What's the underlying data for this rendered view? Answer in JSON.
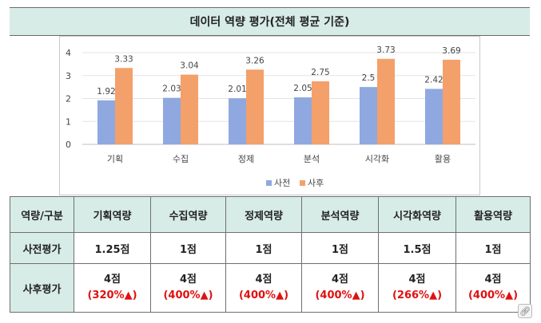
{
  "chart_data": {
    "type": "bar",
    "title": "데이터 역량 평가(전체 평균 기준)",
    "categories": [
      "기획",
      "수집",
      "정제",
      "분석",
      "시각화",
      "활용"
    ],
    "series": [
      {
        "name": "사전",
        "color": "#8fa8e0",
        "values": [
          1.92,
          2.03,
          2.01,
          2.05,
          2.5,
          2.42
        ]
      },
      {
        "name": "사후",
        "color": "#f4a06a",
        "values": [
          3.33,
          3.04,
          3.26,
          2.75,
          3.73,
          3.69
        ]
      }
    ],
    "value_labels": [
      [
        "1.92",
        "2.03",
        "2.01",
        "2.05",
        "2.5",
        "2.42"
      ],
      [
        "3.33",
        "3.04",
        "3.26",
        "2.75",
        "3.73",
        "3.69"
      ]
    ],
    "ylim": [
      0,
      4
    ],
    "yticks": [
      "0",
      "1",
      "2",
      "3",
      "4"
    ],
    "grid": true,
    "legend": "bottom-right"
  },
  "table": {
    "header": [
      "역량/구분",
      "기획역량",
      "수집역량",
      "정제역량",
      "분석역량",
      "시각화역량",
      "활용역량"
    ],
    "pre_label": "사전평가",
    "pre": [
      "1.25점",
      "1점",
      "1점",
      "1점",
      "1.5점",
      "1점"
    ],
    "post_label": "사후평가",
    "post": [
      "4점",
      "4점",
      "4점",
      "4점",
      "4점",
      "4점"
    ],
    "post_change": [
      "(320%▲)",
      "(400%▲)",
      "(400%▲)",
      "(400%▲)",
      "(266%▲)",
      "(400%▲)"
    ]
  },
  "icons": {
    "corner": "link-icon"
  }
}
